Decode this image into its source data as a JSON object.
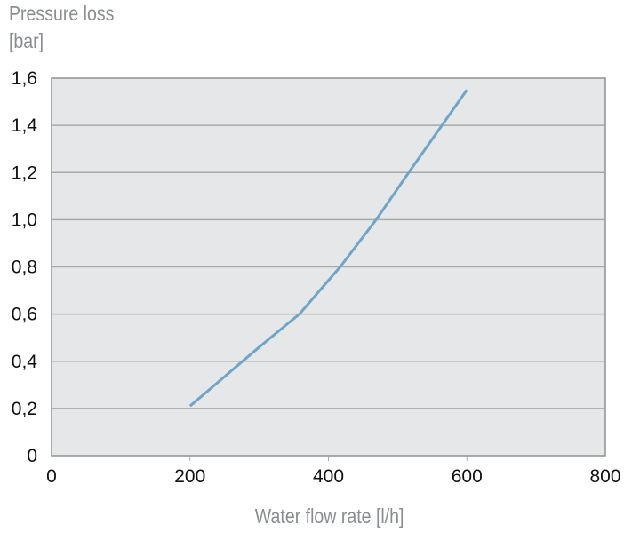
{
  "chart_data": {
    "type": "line",
    "ylabel_line1": "Pressure loss",
    "ylabel_line2": "[bar]",
    "xlabel": "Water flow rate [l/h]",
    "xlim": [
      0,
      800
    ],
    "ylim": [
      0,
      1.6
    ],
    "xticks": [
      "0",
      "200",
      "400",
      "600",
      "800"
    ],
    "yticks": [
      "0",
      "0,2",
      "0,4",
      "0,6",
      "0,8",
      "1,0",
      "1,2",
      "1,4",
      "1,6"
    ],
    "grid": true,
    "series": [
      {
        "color": "#6fa6c8",
        "x": [
          200,
          300,
          358,
          417,
          469,
          516,
          564,
          600
        ],
        "y": [
          0.21,
          0.46,
          0.6,
          0.8,
          1.0,
          1.2,
          1.4,
          1.55
        ]
      }
    ],
    "colors": {
      "plot_background": "#e6e7e8",
      "grid": "#a7a9ac",
      "axis_title": "#8a8d91"
    }
  }
}
